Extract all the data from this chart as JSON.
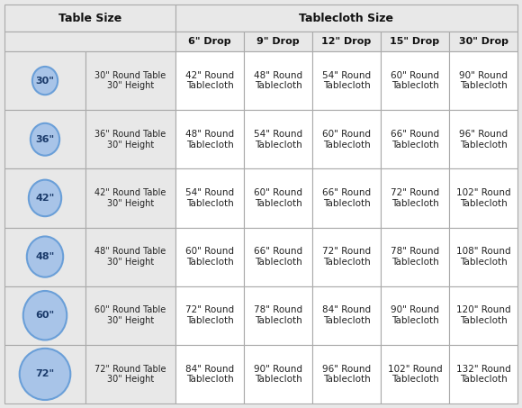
{
  "title_left": "Table Size",
  "title_right": "Tablecloth Size",
  "drop_headers": [
    "6\" Drop",
    "9\" Drop",
    "12\" Drop",
    "15\" Drop",
    "30\" Drop"
  ],
  "rows": [
    {
      "size": "30\"",
      "table_desc": "30\" Round Table\n30\" Height",
      "values": [
        "42\" Round\nTablecloth",
        "48\" Round\nTablecloth",
        "54\" Round\nTablecloth",
        "60\" Round\nTablecloth",
        "90\" Round\nTablecloth"
      ]
    },
    {
      "size": "36\"",
      "table_desc": "36\" Round Table\n30\" Height",
      "values": [
        "48\" Round\nTablecloth",
        "54\" Round\nTablecloth",
        "60\" Round\nTablecloth",
        "66\" Round\nTablecloth",
        "96\" Round\nTablecloth"
      ]
    },
    {
      "size": "42\"",
      "table_desc": "42\" Round Table\n30\" Height",
      "values": [
        "54\" Round\nTablecloth",
        "60\" Round\nTablecloth",
        "66\" Round\nTablecloth",
        "72\" Round\nTablecloth",
        "102\" Round\nTablecloth"
      ]
    },
    {
      "size": "48\"",
      "table_desc": "48\" Round Table\n30\" Height",
      "values": [
        "60\" Round\nTablecloth",
        "66\" Round\nTablecloth",
        "72\" Round\nTablecloth",
        "78\" Round\nTablecloth",
        "108\" Round\nTablecloth"
      ]
    },
    {
      "size": "60\"",
      "table_desc": "60\" Round Table\n30\" Height",
      "values": [
        "72\" Round\nTablecloth",
        "78\" Round\nTablecloth",
        "84\" Round\nTablecloth",
        "90\" Round\nTablecloth",
        "120\" Round\nTablecloth"
      ]
    },
    {
      "size": "72\"",
      "table_desc": "72\" Round Table\n30\" Height",
      "values": [
        "84\" Round\nTablecloth",
        "90\" Round\nTablecloth",
        "96\" Round\nTablecloth",
        "102\" Round\nTablecloth",
        "132\" Round\nTablecloth"
      ]
    }
  ],
  "bg_color": "#e8e8e8",
  "cell_bg_color": "#ffffff",
  "header_bg_color": "#e8e8e8",
  "circle_fill": "#a8c4e8",
  "circle_edge": "#6a9fd8",
  "grid_color": "#aaaaaa",
  "text_color": "#222222",
  "header_text_color": "#111111"
}
